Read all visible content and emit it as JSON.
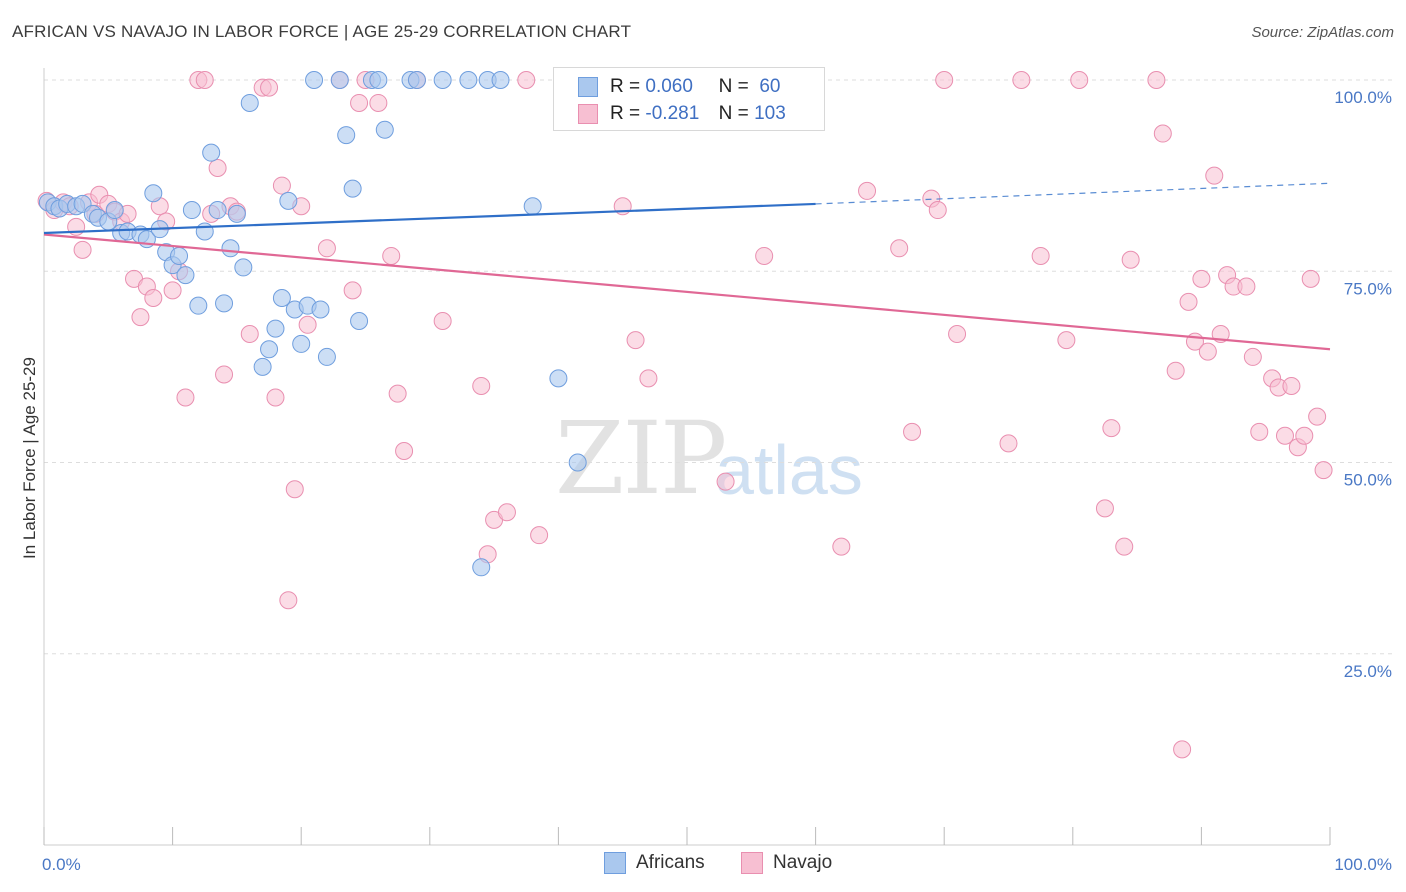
{
  "title": "AFRICAN VS NAVAJO IN LABOR FORCE | AGE 25-29 CORRELATION CHART",
  "source": "Source: ZipAtlas.com",
  "watermark": {
    "zip": "ZIP",
    "atlas": "atlas"
  },
  "legend": {
    "africans": {
      "r_label": "R =",
      "r_value": "0.060",
      "n_label": "N =",
      "n_value": "60"
    },
    "navajo": {
      "r_label": "R =",
      "r_value": "-0.281",
      "n_label": "N =",
      "n_value": "103"
    }
  },
  "colors": {
    "africans_fill": "#aac8ee",
    "africans_stroke": "#6f9ede",
    "africans_line": "#2f6fc8",
    "navajo_fill": "#f7bfd2",
    "navajo_stroke": "#e98fb0",
    "navajo_line": "#e06895",
    "grid": "#dddddd",
    "tick_text": "#4a78c5"
  },
  "chart_data": {
    "type": "scatter",
    "title": "AFRICAN VS NAVAJO IN LABOR FORCE | AGE 25-29 CORRELATION CHART",
    "xlabel": "",
    "ylabel": "In Labor Force | Age 25-29",
    "xlim": [
      0,
      100
    ],
    "ylim": [
      0,
      100
    ],
    "x_tick_labels": [
      "0.0%",
      "100.0%"
    ],
    "y_ticks": [
      25,
      50,
      75,
      100
    ],
    "y_tick_labels": [
      "25.0%",
      "50.0%",
      "75.0%",
      "100.0%"
    ],
    "grid": true,
    "series": [
      {
        "name": "Africans",
        "trend": {
          "x": [
            0,
            60
          ],
          "y": [
            80.0,
            83.8
          ],
          "dashed_extension": {
            "x": [
              60,
              100
            ],
            "y": [
              83.8,
              86.5
            ]
          }
        },
        "points": [
          [
            0.3,
            84.0
          ],
          [
            0.8,
            83.5
          ],
          [
            1.2,
            83.2
          ],
          [
            1.8,
            83.8
          ],
          [
            2.5,
            83.5
          ],
          [
            3.0,
            83.8
          ],
          [
            3.8,
            82.5
          ],
          [
            4.2,
            82.0
          ],
          [
            5.0,
            81.5
          ],
          [
            5.5,
            83.0
          ],
          [
            6.0,
            80.0
          ],
          [
            6.5,
            80.2
          ],
          [
            7.5,
            79.8
          ],
          [
            8.0,
            79.2
          ],
          [
            8.5,
            85.2
          ],
          [
            9.0,
            80.5
          ],
          [
            9.5,
            77.5
          ],
          [
            10.0,
            75.8
          ],
          [
            10.5,
            77.0
          ],
          [
            11.0,
            74.5
          ],
          [
            11.5,
            83.0
          ],
          [
            12.0,
            70.5
          ],
          [
            12.5,
            80.2
          ],
          [
            13.0,
            90.5
          ],
          [
            13.5,
            83.0
          ],
          [
            14.0,
            70.8
          ],
          [
            14.5,
            78.0
          ],
          [
            15.0,
            82.5
          ],
          [
            15.5,
            75.5
          ],
          [
            16.0,
            97.0
          ],
          [
            17.0,
            62.5
          ],
          [
            17.5,
            64.8
          ],
          [
            18.0,
            67.5
          ],
          [
            18.5,
            71.5
          ],
          [
            19.0,
            84.2
          ],
          [
            19.5,
            70.0
          ],
          [
            20.0,
            65.5
          ],
          [
            20.5,
            70.5
          ],
          [
            21.0,
            100.0
          ],
          [
            21.5,
            70.0
          ],
          [
            22.0,
            63.8
          ],
          [
            23.0,
            100.0
          ],
          [
            23.5,
            92.8
          ],
          [
            24.0,
            85.8
          ],
          [
            24.5,
            68.5
          ],
          [
            25.5,
            100.0
          ],
          [
            26.0,
            100.0
          ],
          [
            26.5,
            93.5
          ],
          [
            28.5,
            100.0
          ],
          [
            29.0,
            100.0
          ],
          [
            31.0,
            100.0
          ],
          [
            33.0,
            100.0
          ],
          [
            34.0,
            36.3
          ],
          [
            34.5,
            100.0
          ],
          [
            35.5,
            100.0
          ],
          [
            38.0,
            83.5
          ],
          [
            40.0,
            61.0
          ],
          [
            41.5,
            50.0
          ],
          [
            59.5,
            100.0
          ],
          [
            60.0,
            100.0
          ]
        ]
      },
      {
        "name": "Navajo",
        "trend": {
          "x": [
            0,
            100
          ],
          "y": [
            79.8,
            64.8
          ]
        },
        "points": [
          [
            0.2,
            84.2
          ],
          [
            0.8,
            83.0
          ],
          [
            1.5,
            84.0
          ],
          [
            2.0,
            83.5
          ],
          [
            2.5,
            80.8
          ],
          [
            3.0,
            77.8
          ],
          [
            3.5,
            84.0
          ],
          [
            4.0,
            82.5
          ],
          [
            4.3,
            85.0
          ],
          [
            5.0,
            83.8
          ],
          [
            5.5,
            82.8
          ],
          [
            6.0,
            81.5
          ],
          [
            6.5,
            82.5
          ],
          [
            7.0,
            74.0
          ],
          [
            7.5,
            69.0
          ],
          [
            8.0,
            73.0
          ],
          [
            8.5,
            71.5
          ],
          [
            9.0,
            83.5
          ],
          [
            9.5,
            81.5
          ],
          [
            10.0,
            72.5
          ],
          [
            10.5,
            75.0
          ],
          [
            11.0,
            58.5
          ],
          [
            12.0,
            100.0
          ],
          [
            12.5,
            100.0
          ],
          [
            13.0,
            82.5
          ],
          [
            13.5,
            88.5
          ],
          [
            14.0,
            61.5
          ],
          [
            14.5,
            83.5
          ],
          [
            15.0,
            82.8
          ],
          [
            16.0,
            66.8
          ],
          [
            17.0,
            99.0
          ],
          [
            17.5,
            99.0
          ],
          [
            18.0,
            58.5
          ],
          [
            18.5,
            86.2
          ],
          [
            19.0,
            32.0
          ],
          [
            19.5,
            46.5
          ],
          [
            20.0,
            83.5
          ],
          [
            20.5,
            68.0
          ],
          [
            22.0,
            78.0
          ],
          [
            23.0,
            100.0
          ],
          [
            24.0,
            72.5
          ],
          [
            24.5,
            97.0
          ],
          [
            25.0,
            100.0
          ],
          [
            26.0,
            97.0
          ],
          [
            27.0,
            77.0
          ],
          [
            27.5,
            59.0
          ],
          [
            28.0,
            51.5
          ],
          [
            29.0,
            100.0
          ],
          [
            31.0,
            68.5
          ],
          [
            34.0,
            60.0
          ],
          [
            34.5,
            38.0
          ],
          [
            35.0,
            42.5
          ],
          [
            36.0,
            43.5
          ],
          [
            37.5,
            100.0
          ],
          [
            38.5,
            40.5
          ],
          [
            45.0,
            83.5
          ],
          [
            46.0,
            66.0
          ],
          [
            47.0,
            61.0
          ],
          [
            53.0,
            47.5
          ],
          [
            56.0,
            77.0
          ],
          [
            59.5,
            100.0
          ],
          [
            60.0,
            100.0
          ],
          [
            62.0,
            39.0
          ],
          [
            64.0,
            85.5
          ],
          [
            66.5,
            78.0
          ],
          [
            67.5,
            54.0
          ],
          [
            69.0,
            84.5
          ],
          [
            69.5,
            83.0
          ],
          [
            70.0,
            100.0
          ],
          [
            71.0,
            66.8
          ],
          [
            75.0,
            52.5
          ],
          [
            76.0,
            100.0
          ],
          [
            77.5,
            77.0
          ],
          [
            79.5,
            66.0
          ],
          [
            80.5,
            100.0
          ],
          [
            82.5,
            44.0
          ],
          [
            83.0,
            54.5
          ],
          [
            84.0,
            39.0
          ],
          [
            84.5,
            76.5
          ],
          [
            86.5,
            100.0
          ],
          [
            87.0,
            93.0
          ],
          [
            88.0,
            62.0
          ],
          [
            88.5,
            12.5
          ],
          [
            89.0,
            71.0
          ],
          [
            89.5,
            65.8
          ],
          [
            90.0,
            74.0
          ],
          [
            90.5,
            64.5
          ],
          [
            91.0,
            87.5
          ],
          [
            91.5,
            66.8
          ],
          [
            92.0,
            74.5
          ],
          [
            92.5,
            73.0
          ],
          [
            93.5,
            73.0
          ],
          [
            94.0,
            63.8
          ],
          [
            94.5,
            54.0
          ],
          [
            95.5,
            61.0
          ],
          [
            96.0,
            59.8
          ],
          [
            96.5,
            53.5
          ],
          [
            97.0,
            60.0
          ],
          [
            97.5,
            52.0
          ],
          [
            98.0,
            53.5
          ],
          [
            98.5,
            74.0
          ],
          [
            99.0,
            56.0
          ],
          [
            99.5,
            49.0
          ]
        ]
      }
    ]
  },
  "bottom_legend": [
    {
      "label": "Africans"
    },
    {
      "label": "Navajo"
    }
  ]
}
